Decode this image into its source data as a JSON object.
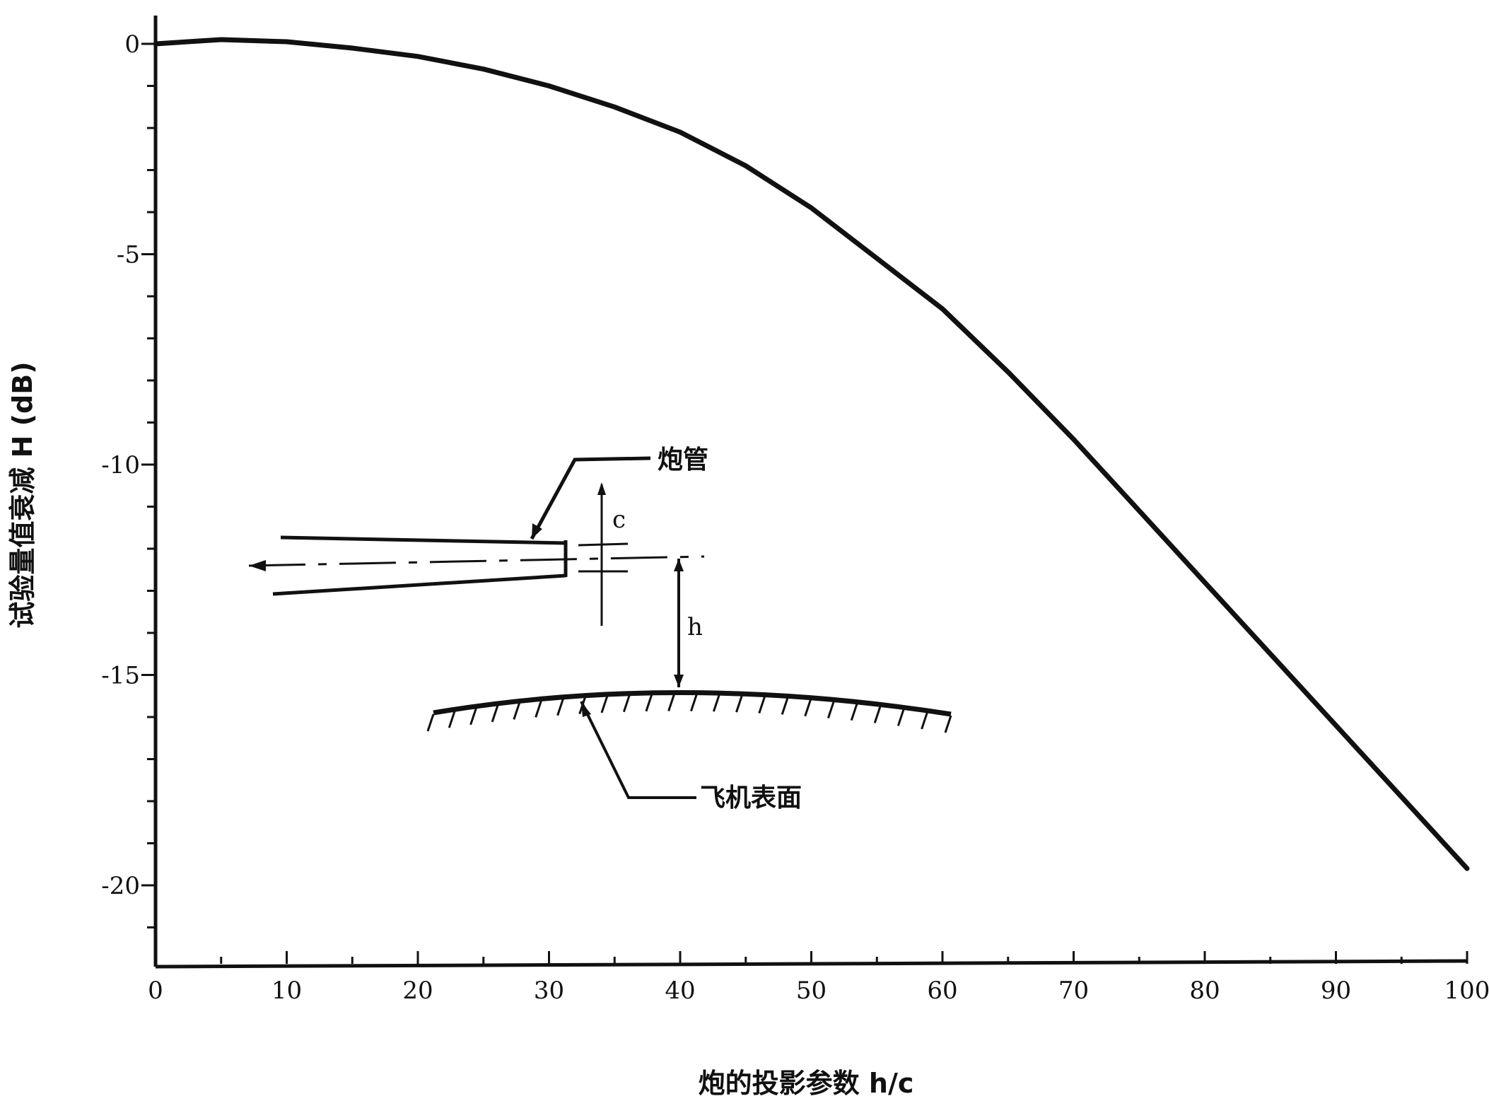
{
  "chart_data": {
    "type": "line",
    "title": "",
    "xlabel": "炮的投影参数 h/c",
    "ylabel": "试验量值衰减 H (dB)",
    "xlim": [
      0,
      100
    ],
    "ylim": [
      -22,
      0
    ],
    "x_ticks": [
      "0",
      "10",
      "20",
      "30",
      "40",
      "50",
      "60",
      "70",
      "80",
      "90",
      "100"
    ],
    "y_ticks": [
      "0",
      "-5",
      "-10",
      "-15",
      "-20"
    ],
    "grid": false,
    "series": [
      {
        "x": [
          0,
          5,
          10,
          15,
          20,
          25,
          30,
          35,
          40,
          45,
          50,
          55,
          60,
          65,
          70,
          75,
          80,
          85,
          90,
          95,
          100
        ],
        "values": [
          0,
          0.1,
          0.05,
          -0.1,
          -0.3,
          -0.6,
          -1.0,
          -1.5,
          -2.1,
          -2.9,
          -3.9,
          -5.1,
          -6.3,
          -7.8,
          -9.4,
          -11.1,
          -12.8,
          -14.5,
          -16.2,
          -17.9,
          -19.6
        ]
      }
    ],
    "annotations": {
      "gun_barrel": "炮管",
      "aircraft_surface": "飞机表面",
      "c_label": "c",
      "h_label": "h"
    }
  }
}
